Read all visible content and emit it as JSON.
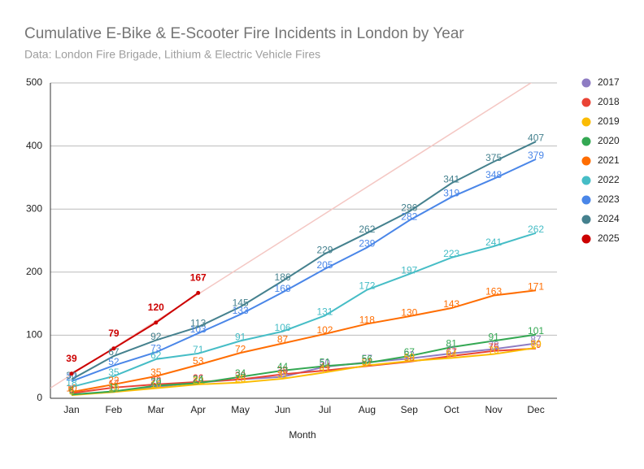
{
  "chart_data": {
    "type": "line",
    "title": "Cumulative E-Bike & E-Scooter Fire Incidents in London by Year",
    "subtitle": "Data: London Fire Brigade, Lithium & Electric Vehicle Fires",
    "x_label": "Month",
    "categories": [
      "Jan",
      "Feb",
      "Mar",
      "Apr",
      "May",
      "Jun",
      "Jul",
      "Aug",
      "Sep",
      "Oct",
      "Nov",
      "Dec"
    ],
    "ylim": [
      0,
      500
    ],
    "yticks": [
      0,
      100,
      200,
      300,
      400,
      500
    ],
    "grid": true,
    "legend": "right",
    "trendline": {
      "series": "2025",
      "color": "#f4c7c3"
    },
    "series": [
      {
        "name": "2017",
        "color": "#8e7cc3",
        "values": [
          6,
          10,
          18,
          25,
          30,
          34,
          50,
          57,
          63,
          71,
          78,
          87
        ]
      },
      {
        "name": "2018",
        "color": "#ea4335",
        "values": [
          8,
          17,
          22,
          26,
          30,
          38,
          44,
          51,
          58,
          67,
          75,
          79
        ]
      },
      {
        "name": "2019",
        "color": "#fbbc04",
        "values": [
          5,
          10,
          16,
          22,
          25,
          31,
          41,
          52,
          59,
          64,
          70,
          80
        ]
      },
      {
        "name": "2020",
        "color": "#34a853",
        "values": [
          6,
          11,
          20,
          24,
          34,
          44,
          51,
          56,
          67,
          81,
          91,
          101
        ]
      },
      {
        "name": "2021",
        "color": "#ff6d01",
        "values": [
          10,
          22,
          35,
          53,
          72,
          87,
          102,
          118,
          130,
          143,
          163,
          171
        ]
      },
      {
        "name": "2022",
        "color": "#46bdc6",
        "values": [
          18,
          35,
          62,
          71,
          91,
          106,
          131,
          172,
          197,
          223,
          241,
          262
        ]
      },
      {
        "name": "2023",
        "color": "#4a86e8",
        "values": [
          27,
          52,
          73,
          103,
          133,
          168,
          205,
          239,
          282,
          319,
          348,
          379
        ]
      },
      {
        "name": "2024",
        "color": "#45818e",
        "values": [
          30,
          67,
          92,
          113,
          145,
          186,
          229,
          262,
          296,
          341,
          375,
          407
        ]
      },
      {
        "name": "2025",
        "color": "#cc0000",
        "values": [
          39,
          79,
          120,
          167,
          null,
          null,
          null,
          null,
          null,
          null,
          null,
          null
        ]
      }
    ]
  }
}
